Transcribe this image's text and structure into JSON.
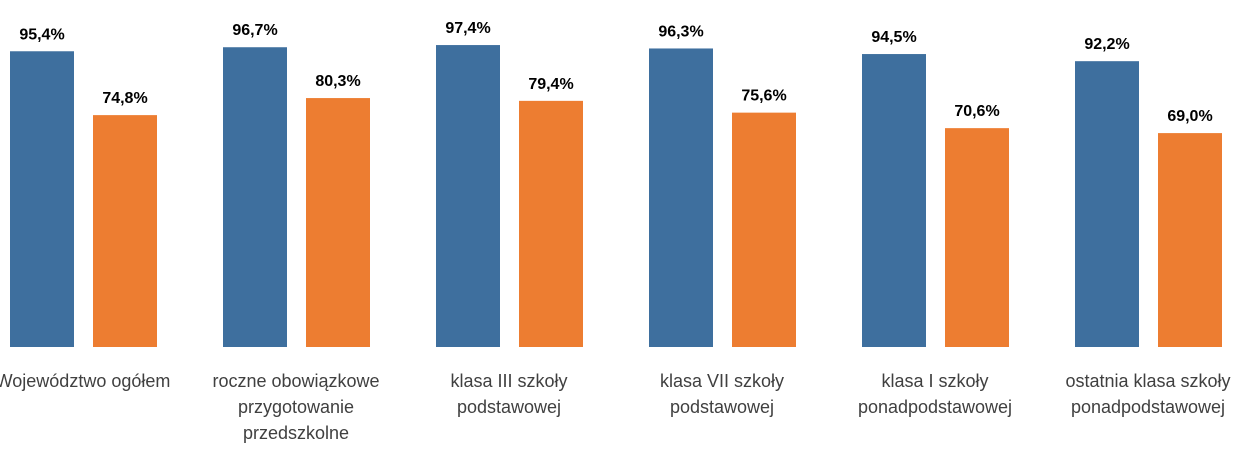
{
  "chart_data": {
    "type": "bar",
    "categories": [
      "Województwo ogółem",
      "roczne obowiązkowe przygotowanie przedszkolne",
      "klasa III szkoły podstawowej",
      "klasa VII szkoły podstawowej",
      "klasa I szkoły ponadpodstawowej",
      "ostatnia klasa szkoły ponadpodstawowej"
    ],
    "series": [
      {
        "color": "#3e6f9e",
        "values": [
          95.4,
          96.7,
          97.4,
          96.3,
          94.5,
          92.2
        ],
        "value_labels": [
          "95,4%",
          "96,7%",
          "97,4%",
          "96,3%",
          "94,5%",
          "92,2%"
        ]
      },
      {
        "color": "#ed7d31",
        "values": [
          74.8,
          80.3,
          79.4,
          75.6,
          70.6,
          69.0
        ],
        "value_labels": [
          "74,8%",
          "80,3%",
          "79,4%",
          "75,6%",
          "70,6%",
          "69,0%"
        ]
      }
    ],
    "ylim": [
      0,
      100
    ]
  }
}
